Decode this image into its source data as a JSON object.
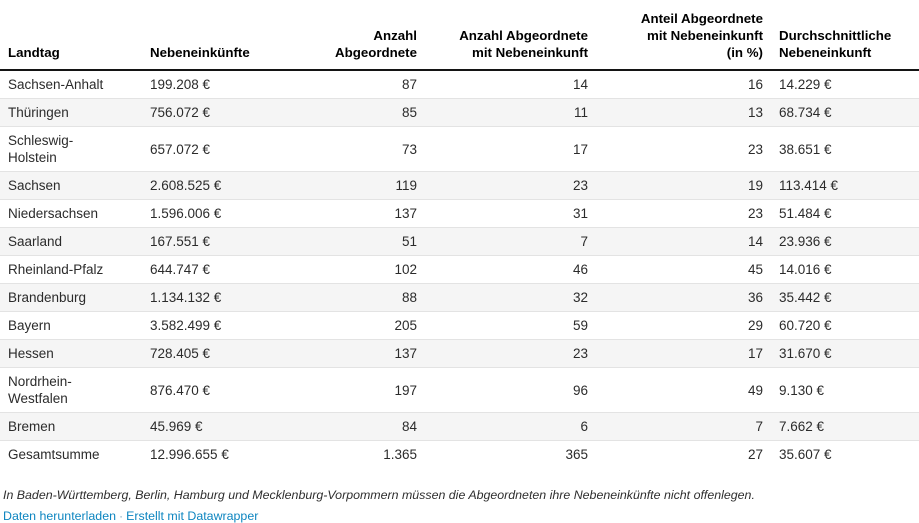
{
  "chart_data": {
    "type": "table",
    "columns": [
      "Landtag",
      "Nebeneinkünfte",
      "Anzahl\nAbgeordnete",
      "Anzahl Abgeordnete\nmit Nebeneinkunft",
      "Anteil Abgeordnete\nmit Nebeneinkunft\n(in %)",
      "Durchschnittliche\nNebeneinkunft"
    ],
    "rows": [
      [
        "Sachsen-Anhalt",
        "199.208 €",
        "87",
        "14",
        "16",
        "14.229 €"
      ],
      [
        "Thüringen",
        "756.072 €",
        "85",
        "11",
        "13",
        "68.734 €"
      ],
      [
        "Schleswig-\nHolstein",
        "657.072 €",
        "73",
        "17",
        "23",
        "38.651 €"
      ],
      [
        "Sachsen",
        "2.608.525 €",
        "119",
        "23",
        "19",
        "113.414 €"
      ],
      [
        "Niedersachsen",
        "1.596.006 €",
        "137",
        "31",
        "23",
        "51.484 €"
      ],
      [
        "Saarland",
        "167.551 €",
        "51",
        "7",
        "14",
        "23.936 €"
      ],
      [
        "Rheinland-Pfalz",
        "644.747 €",
        "102",
        "46",
        "45",
        "14.016 €"
      ],
      [
        "Brandenburg",
        "1.134.132 €",
        "88",
        "32",
        "36",
        "35.442 €"
      ],
      [
        "Bayern",
        "3.582.499 €",
        "205",
        "59",
        "29",
        "60.720 €"
      ],
      [
        "Hessen",
        "728.405 €",
        "137",
        "23",
        "17",
        "31.670 €"
      ],
      [
        "Nordrhein-\nWestfalen",
        "876.470 €",
        "197",
        "96",
        "49",
        "9.130 €"
      ],
      [
        "Bremen",
        "45.969 €",
        "84",
        "6",
        "7",
        "7.662 €"
      ],
      [
        "Gesamtsumme",
        "12.996.655 €",
        "1.365",
        "365",
        "27",
        "35.607 €"
      ]
    ]
  },
  "footer": {
    "note": "In Baden-Württemberg, Berlin, Hamburg und Mecklenburg-Vorpommern müssen die Abgeordneten ihre Nebeneinkünfte nicht offenlegen.",
    "separator": "·",
    "links": [
      "Daten herunterladen",
      "Erstellt mit Datawrapper"
    ]
  },
  "colors": {
    "link": "#0d85c0",
    "zebra_row": "#f5f5f5",
    "row_border": "#e3e3e3",
    "header_rule": "#141414"
  }
}
